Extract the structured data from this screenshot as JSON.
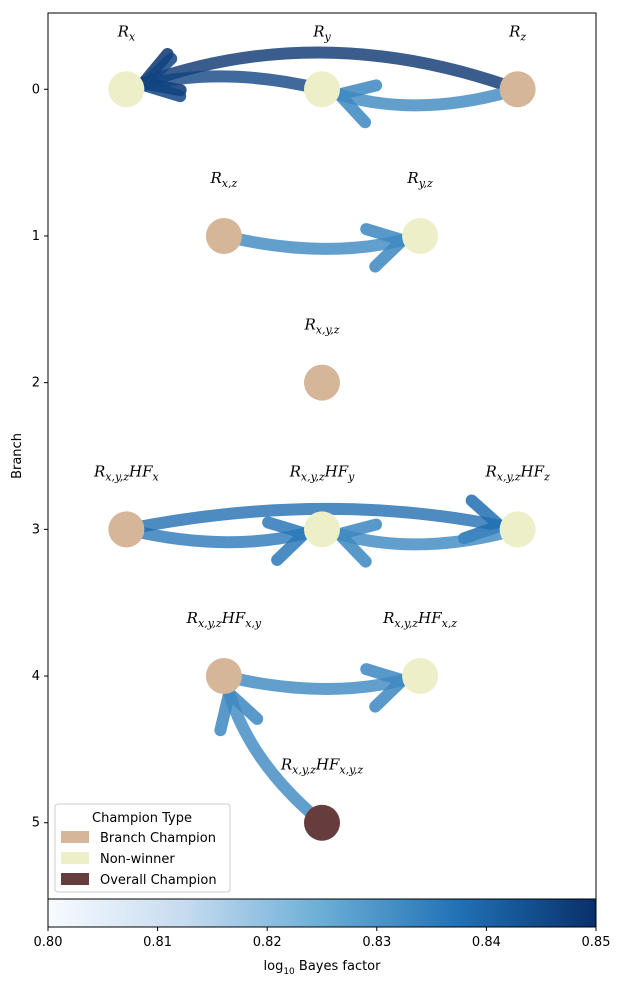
{
  "chart_data": {
    "type": "network",
    "ylabel": "Branch",
    "colorbar": {
      "label": "log10 Bayes factor",
      "label_main": "log",
      "label_sub": "10",
      "label_rest": " Bayes factor",
      "range": [
        0.8,
        0.85
      ],
      "ticks": [
        "0.80",
        "0.81",
        "0.82",
        "0.83",
        "0.84",
        "0.85"
      ],
      "colors": [
        "#f7fbff",
        "#c6dbef",
        "#6baed6",
        "#2171b5",
        "#08306b"
      ]
    },
    "y_ticks": [
      "0",
      "1",
      "2",
      "3",
      "4",
      "5"
    ],
    "y_range": [
      -0.52,
      5.52
    ],
    "x_range": [
      0,
      1
    ],
    "colors": {
      "Branch Champion": "#d6b699",
      "Non-winner": "#ecefc8",
      "Overall Champion": "#663c3c"
    },
    "nodes": [
      {
        "id": "Rx",
        "base": "R",
        "sub": "x",
        "suffix": "",
        "suffix_sub": "",
        "branch": 0,
        "x": 0.143,
        "type": "Non-winner"
      },
      {
        "id": "Ry",
        "base": "R",
        "sub": "y",
        "suffix": "",
        "suffix_sub": "",
        "branch": 0,
        "x": 0.5,
        "type": "Non-winner"
      },
      {
        "id": "Rz",
        "base": "R",
        "sub": "z",
        "suffix": "",
        "suffix_sub": "",
        "branch": 0,
        "x": 0.857,
        "type": "Branch Champion"
      },
      {
        "id": "Rxz",
        "base": "R",
        "sub": "x,z",
        "suffix": "",
        "suffix_sub": "",
        "branch": 1,
        "x": 0.321,
        "type": "Branch Champion"
      },
      {
        "id": "Ryz",
        "base": "R",
        "sub": "y,z",
        "suffix": "",
        "suffix_sub": "",
        "branch": 1,
        "x": 0.679,
        "type": "Non-winner"
      },
      {
        "id": "Rxyz",
        "base": "R",
        "sub": "x,y,z",
        "suffix": "",
        "suffix_sub": "",
        "branch": 2,
        "x": 0.5,
        "type": "Branch Champion"
      },
      {
        "id": "RHFx",
        "base": "R",
        "sub": "x,y,z",
        "suffix": "HF",
        "suffix_sub": "x",
        "branch": 3,
        "x": 0.143,
        "type": "Branch Champion"
      },
      {
        "id": "RHFy",
        "base": "R",
        "sub": "x,y,z",
        "suffix": "HF",
        "suffix_sub": "y",
        "branch": 3,
        "x": 0.5,
        "type": "Non-winner"
      },
      {
        "id": "RHFz",
        "base": "R",
        "sub": "x,y,z",
        "suffix": "HF",
        "suffix_sub": "z",
        "branch": 3,
        "x": 0.857,
        "type": "Non-winner"
      },
      {
        "id": "RHFxy",
        "base": "R",
        "sub": "x,y,z",
        "suffix": "HF",
        "suffix_sub": "x,y",
        "branch": 4,
        "x": 0.321,
        "type": "Branch Champion"
      },
      {
        "id": "RHFxz",
        "base": "R",
        "sub": "x,y,z",
        "suffix": "HF",
        "suffix_sub": "x,z",
        "branch": 4,
        "x": 0.679,
        "type": "Non-winner"
      },
      {
        "id": "RHFxyz",
        "base": "R",
        "sub": "x,y,z",
        "suffix": "HF",
        "suffix_sub": "x,y,z",
        "branch": 5,
        "x": 0.5,
        "type": "Overall Champion"
      }
    ],
    "edges": [
      {
        "from": "Rz",
        "to": "Rx",
        "bayes": 0.849,
        "bend": 0.18
      },
      {
        "from": "Ry",
        "to": "Rx",
        "bayes": 0.846,
        "bend": 0.12
      },
      {
        "from": "Rz",
        "to": "Ry",
        "bayes": 0.833,
        "bend": -0.15
      },
      {
        "from": "Rxz",
        "to": "Ryz",
        "bayes": 0.833,
        "bend": 0.12
      },
      {
        "from": "RHFx",
        "to": "RHFy",
        "bayes": 0.836,
        "bend": 0.12
      },
      {
        "from": "RHFx",
        "to": "RHFz",
        "bayes": 0.838,
        "bend": -0.1
      },
      {
        "from": "RHFz",
        "to": "RHFy",
        "bayes": 0.833,
        "bend": -0.14
      },
      {
        "from": "RHFxy",
        "to": "RHFxz",
        "bayes": 0.833,
        "bend": 0.12
      },
      {
        "from": "RHFxyz",
        "to": "RHFxy",
        "bayes": 0.833,
        "bend": -0.15
      }
    ],
    "legend": {
      "title": "Champion Type",
      "placement": "lower-left",
      "items": [
        "Branch Champion",
        "Non-winner",
        "Overall Champion"
      ]
    }
  }
}
